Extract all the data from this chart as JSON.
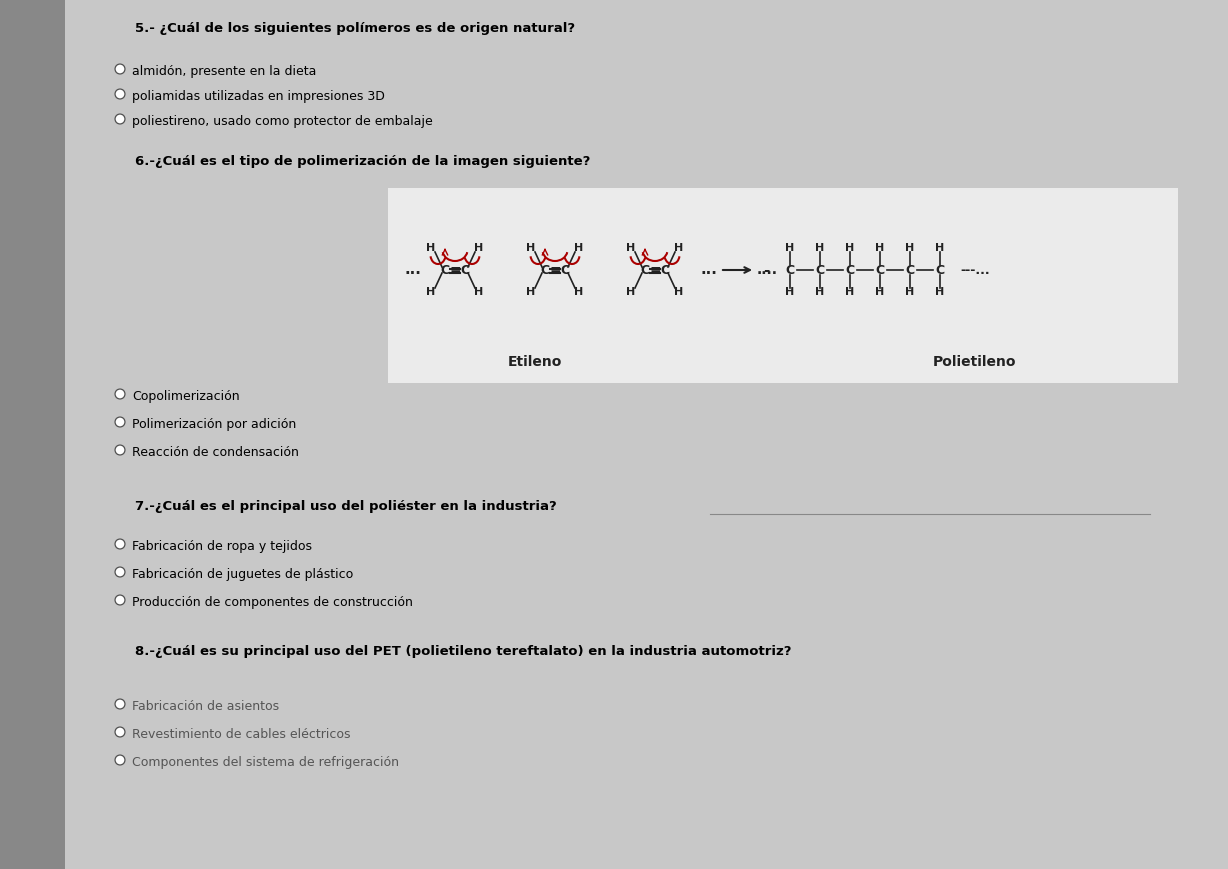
{
  "bg_color": "#c8c8c8",
  "panel_bg": "#f0f0f0",
  "text_color": "#000000",
  "title_color": "#000000",
  "q5_title": "5.- ¿Cuál de los siguientes polímeros es de origen natural?",
  "q5_options": [
    "almidón, presente en la dieta",
    "poliamidas utilizadas en impresiones 3D",
    "poliestireno, usado como protector de embalaje"
  ],
  "q6_title": "6.-¿Cuál es el tipo de polimerización de la imagen siguiente?",
  "q6_options": [
    "Copolimerización",
    "Polimerización por adición",
    "Reacción de condensación"
  ],
  "etileno_label": "Etileno",
  "polietileno_label": "Polietileno",
  "q7_title": "7.-¿Cuál es el principal uso del poliéster en la industria?",
  "q7_options": [
    "Fabricación de ropa y tejidos",
    "Fabricación de juguetes de plástico",
    "Producción de componentes de construcción"
  ],
  "q8_title": "8.-¿Cuál es su principal uso del PET (polietileno tereftalato) en la industria automotriz?",
  "q8_options": [
    "Fabricación de asientos",
    "Revestimiento de cables eléctricos",
    "Componentes del sistema de refrigeración"
  ]
}
